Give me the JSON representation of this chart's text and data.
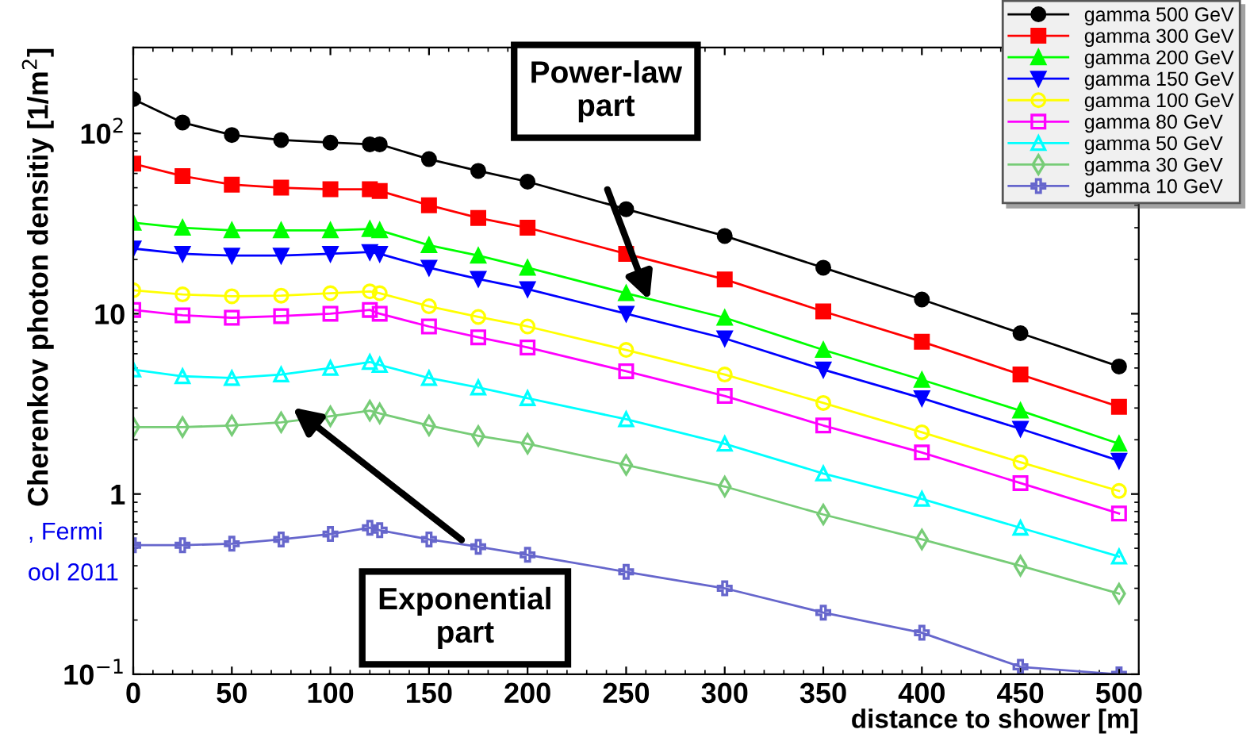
{
  "chart_data": {
    "type": "line",
    "xlabel": "distance to shower [m]",
    "ylabel": "Cherenkov photon densitiy [1/m$^{2}$]",
    "x": [
      0,
      25,
      50,
      75,
      100,
      120,
      125,
      150,
      175,
      200,
      250,
      300,
      350,
      400,
      450,
      500
    ],
    "xlim": [
      0,
      510
    ],
    "xticks": [
      0,
      50,
      100,
      150,
      200,
      250,
      300,
      350,
      400,
      450,
      500
    ],
    "ylim": [
      0.1,
      300
    ],
    "yticks": [
      {
        "value": 0.1,
        "label": "10$^{−1}$"
      },
      1,
      10,
      {
        "value": 100,
        "label": "10$^{2}$"
      }
    ],
    "log": "y",
    "grid": false,
    "legend": "top right",
    "line_style": "solid",
    "series": [
      {
        "name": "gamma 500 GeV",
        "color": "#000000",
        "marker": "circle",
        "values": [
          155,
          115,
          98,
          92,
          89,
          87,
          87,
          72,
          62,
          54,
          38,
          27,
          18,
          12,
          7.8,
          5.1
        ]
      },
      {
        "name": "gamma 300 GeV",
        "color": "#ff0000",
        "marker": "square",
        "values": [
          68,
          58,
          52,
          50,
          49,
          49,
          48,
          40,
          34,
          30,
          21.5,
          15.5,
          10.3,
          7.0,
          4.6,
          3.05
        ]
      },
      {
        "name": "gamma 200 GeV",
        "color": "#00ff00",
        "marker": "triangle",
        "values": [
          32,
          30,
          29,
          29,
          29,
          29.5,
          29,
          24,
          21,
          18,
          13,
          9.5,
          6.3,
          4.3,
          2.9,
          1.9
        ]
      },
      {
        "name": "gamma 150 GeV",
        "color": "#0000ff",
        "marker": "triangle_down",
        "values": [
          23,
          21.5,
          21,
          21,
          21.5,
          22,
          21.5,
          18,
          15.6,
          13.7,
          10,
          7.3,
          4.9,
          3.4,
          2.3,
          1.53
        ]
      },
      {
        "name": "gamma 100 GeV",
        "color": "#ffff00",
        "marker": "circle_open",
        "values": [
          13.5,
          12.8,
          12.5,
          12.6,
          13,
          13.3,
          13,
          11,
          9.6,
          8.5,
          6.3,
          4.6,
          3.2,
          2.2,
          1.5,
          1.04
        ]
      },
      {
        "name": "gamma 80 GeV",
        "color": "#ff00ff",
        "marker": "square_open",
        "values": [
          10.5,
          9.8,
          9.5,
          9.7,
          10,
          10.5,
          10,
          8.5,
          7.4,
          6.5,
          4.8,
          3.5,
          2.4,
          1.7,
          1.15,
          0.78
        ]
      },
      {
        "name": "gamma 50 GeV",
        "color": "#00ffff",
        "marker": "triangle_open",
        "values": [
          4.9,
          4.5,
          4.4,
          4.6,
          5.0,
          5.4,
          5.2,
          4.4,
          3.9,
          3.4,
          2.6,
          1.9,
          1.3,
          0.94,
          0.65,
          0.45
        ]
      },
      {
        "name": "gamma 30 GeV",
        "color": "#77cc77",
        "marker": "diamond_open",
        "values": [
          2.35,
          2.35,
          2.4,
          2.5,
          2.7,
          2.9,
          2.8,
          2.4,
          2.1,
          1.9,
          1.45,
          1.1,
          0.77,
          0.56,
          0.4,
          0.28
        ]
      },
      {
        "name": "gamma 10 GeV",
        "color": "#6666cc",
        "marker": "cross_open",
        "values": [
          0.52,
          0.52,
          0.53,
          0.56,
          0.6,
          0.65,
          0.63,
          0.56,
          0.51,
          0.46,
          0.37,
          0.3,
          0.22,
          0.17,
          0.11,
          0.1
        ]
      }
    ],
    "annotations": [
      "Power-law\npart",
      "Exponential\npart",
      ", Fermi",
      "ool 2011"
    ]
  }
}
